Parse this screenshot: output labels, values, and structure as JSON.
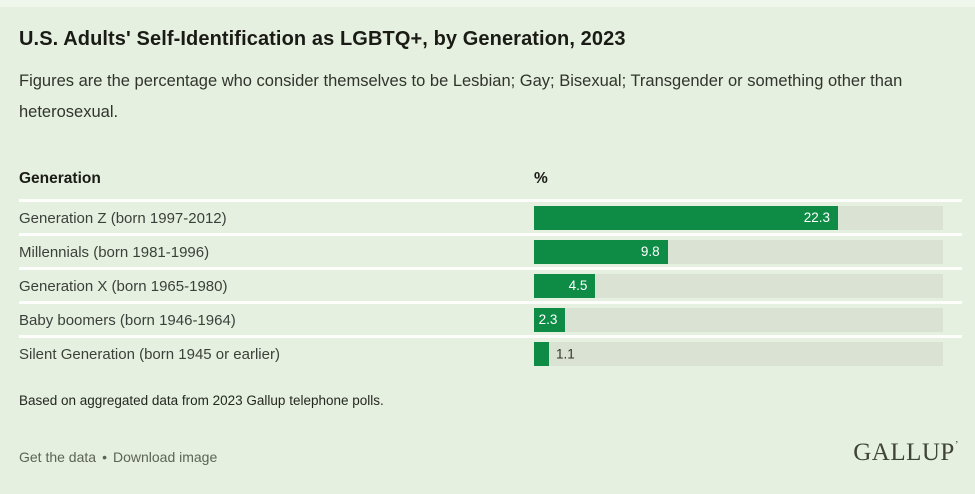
{
  "chart": {
    "title": "U.S. Adults' Self-Identification as LGBTQ+, by Generation, 2023",
    "subtitle": "Figures are the percentage who consider themselves to be Lesbian; Gay; Bisexual; Transgender or something other than heterosexual.",
    "columns": {
      "generation": "Generation",
      "percent": "%"
    },
    "note": "Based on aggregated data from 2023 Gallup telephone polls."
  },
  "chart_data": {
    "type": "bar",
    "orientation": "horizontal",
    "title": "U.S. Adults' Self-Identification as LGBTQ+, by Generation, 2023",
    "categories": [
      "Generation Z (born 1997-2012)",
      "Millennials (born 1981-1996)",
      "Generation X (born 1965-1980)",
      "Baby boomers (born 1946-1964)",
      "Silent Generation (born 1945 or earlier)"
    ],
    "values": [
      22.3,
      9.8,
      4.5,
      2.3,
      1.1
    ],
    "value_labels": [
      "22.3",
      "9.8",
      "4.5",
      "2.3",
      "1.1"
    ],
    "label_positions": [
      "inside",
      "inside",
      "inside",
      "inside",
      "outside"
    ],
    "xlabel": "%",
    "ylabel": "Generation",
    "xlim": [
      0,
      30
    ],
    "grid": false,
    "legend": false,
    "colors": {
      "bar": "#0e8c46",
      "track": "#d9e2d3",
      "background": "#e5f0e1",
      "value_inside": "#ffffff",
      "value_outside": "#31342c"
    }
  },
  "footer": {
    "links": [
      {
        "label": "Get the data"
      },
      {
        "label": "Download image"
      }
    ],
    "link_separator": "•",
    "logo": "GALLUP",
    "logo_mark": "’"
  }
}
